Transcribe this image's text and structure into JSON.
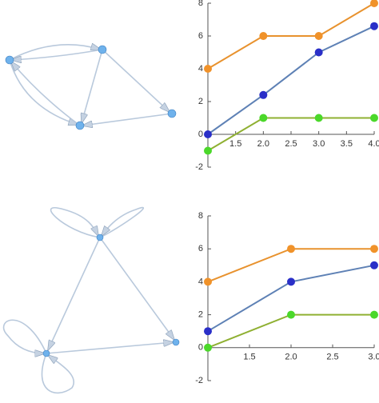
{
  "chart_data": [
    {
      "type": "line",
      "x": [
        1,
        2,
        3,
        4
      ],
      "xlim": [
        1,
        4
      ],
      "xticks": [
        1.5,
        {
          "value": 2,
          "label": "2.0"
        },
        2.5,
        {
          "value": 3,
          "label": "3.0"
        },
        3.5,
        {
          "value": 4,
          "label": "4.0"
        }
      ],
      "ylim": [
        -2,
        8
      ],
      "yticks": [
        -2,
        0,
        2,
        4,
        6,
        8
      ],
      "series": [
        {
          "color": "#e8922e",
          "marker_color": "#f0922a",
          "values": [
            4,
            6,
            6,
            8
          ]
        },
        {
          "color": "#5e81b5",
          "marker_color": "#2a2fc8",
          "values": [
            0,
            2.4,
            5,
            6.6
          ]
        },
        {
          "color": "#8fb032",
          "marker_color": "#4bd82a",
          "values": [
            -1,
            1,
            1,
            1
          ]
        }
      ]
    },
    {
      "type": "line",
      "x": [
        1,
        2,
        3
      ],
      "xlim": [
        1,
        3
      ],
      "xticks": [
        1.5,
        {
          "value": 2,
          "label": "2.0"
        },
        2.5,
        {
          "value": 3,
          "label": "3.0"
        }
      ],
      "ylim": [
        -2,
        8
      ],
      "yticks": [
        -2,
        0,
        2,
        4,
        6,
        8
      ],
      "series": [
        {
          "color": "#e8922e",
          "marker_color": "#f0922a",
          "values": [
            4,
            6,
            6
          ]
        },
        {
          "color": "#5e81b5",
          "marker_color": "#2a2fc8",
          "values": [
            1,
            4,
            5
          ]
        },
        {
          "color": "#8fb032",
          "marker_color": "#4bd82a",
          "values": [
            0,
            2,
            2
          ]
        }
      ]
    }
  ]
}
